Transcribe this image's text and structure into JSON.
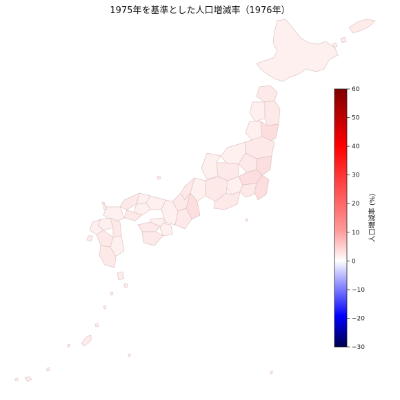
{
  "title": "1975年を基準とした人口増減率（1976年）",
  "colorbar": {
    "label": "人口増減率 (%)",
    "min": -30,
    "max": 60,
    "ticks": [
      "60",
      "50",
      "40",
      "30",
      "20",
      "10",
      "0",
      "−10",
      "−20",
      "−30"
    ],
    "tick_values": [
      60,
      50,
      40,
      30,
      20,
      10,
      0,
      -10,
      -20,
      -30
    ],
    "colormap": "seismic",
    "color_low": "#00004c",
    "color_mid": "#ffffff",
    "color_high": "#7f0000"
  },
  "map": {
    "region": "Japan",
    "prefecture_fill": "#fde9e8",
    "border_color": "#ddc3c3"
  }
}
